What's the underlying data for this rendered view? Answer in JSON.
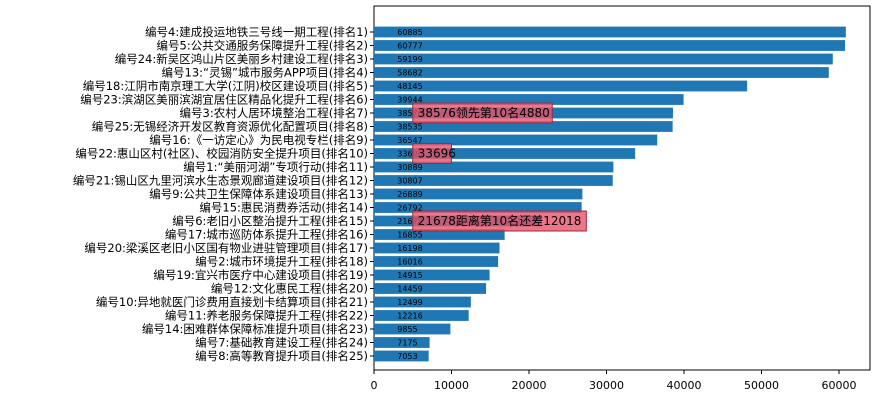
{
  "chart_data": {
    "type": "bar",
    "orientation": "horizontal",
    "categories": [
      "编号4:建成投运地铁三号线一期工程(排名1)",
      "编号5:公共交通服务保障提升工程(排名2)",
      "编号24:新吴区鸿山片区美丽乡村建设工程(排名3)",
      "编号13:“灵锡”城市服务APP项目(排名4)",
      "编号18:江阴市南京理工大学(江阴)校区建设项目(排名5)",
      "编号23:滨湖区美丽滨湖宜居住区精品化提升工程(排名6)",
      "编号3:农村人居环境整治工程(排名7)",
      "编号25:无锡经济开发区教育资源优化配置项目(排名8)",
      "编号16:《一访定心》为民电视专栏(排名9)",
      "编号22:惠山区村(社区)、校园消防安全提升项目(排名10)",
      "编号1:“美丽河湖”专项行动(排名11)",
      "编号21:锡山区九里河滨水生态景观廊道建设项目(排名12)",
      "编号9:公共卫生保障体系建设项目(排名13)",
      "编号15:惠民消费券活动(排名14)",
      "编号6:老旧小区整治提升工程(排名15)",
      "编号17:城市巡防体系提升工程(排名16)",
      "编号20:梁溪区老旧小区国有物业进驻管理项目(排名17)",
      "编号2:城市环境提升工程(排名18)",
      "编号19:宜兴市医疗中心建设项目(排名19)",
      "编号12:文化惠民工程(排名20)",
      "编号10:异地就医门诊费用直接划卡结算项目(排名21)",
      "编号11:养老服务保障提升工程(排名22)",
      "编号14:困难群体保障标准提升项目(排名23)",
      "编号7:基础教育建设工程(排名24)",
      "编号8:高等教育提升项目(排名25)"
    ],
    "values": [
      60885,
      60777,
      59199,
      58682,
      48145,
      39944,
      38576,
      38535,
      36547,
      33696,
      30889,
      30807,
      26889,
      26792,
      21678,
      16855,
      16198,
      16016,
      14915,
      14459,
      12499,
      12216,
      9855,
      7175,
      7053
    ],
    "xlim": [
      0,
      64000
    ],
    "xticks": [
      0,
      10000,
      20000,
      30000,
      40000,
      50000,
      60000
    ],
    "bar_color": "#1f77b4",
    "annotations": [
      {
        "index": 6,
        "text": "38576领先第10名4880",
        "box_color": "#e8556a",
        "x_start": 5000,
        "x_end": 23000
      },
      {
        "index": 9,
        "text": "33696",
        "box_color": "#e8556a",
        "x_start": 5000,
        "x_end": 10000
      },
      {
        "index": 14,
        "text": "21678距离第10名还差12018",
        "box_color": "#e8556a",
        "x_start": 5000,
        "x_end": 27400
      }
    ],
    "grid": false,
    "title": "",
    "xlabel": "",
    "ylabel": ""
  }
}
